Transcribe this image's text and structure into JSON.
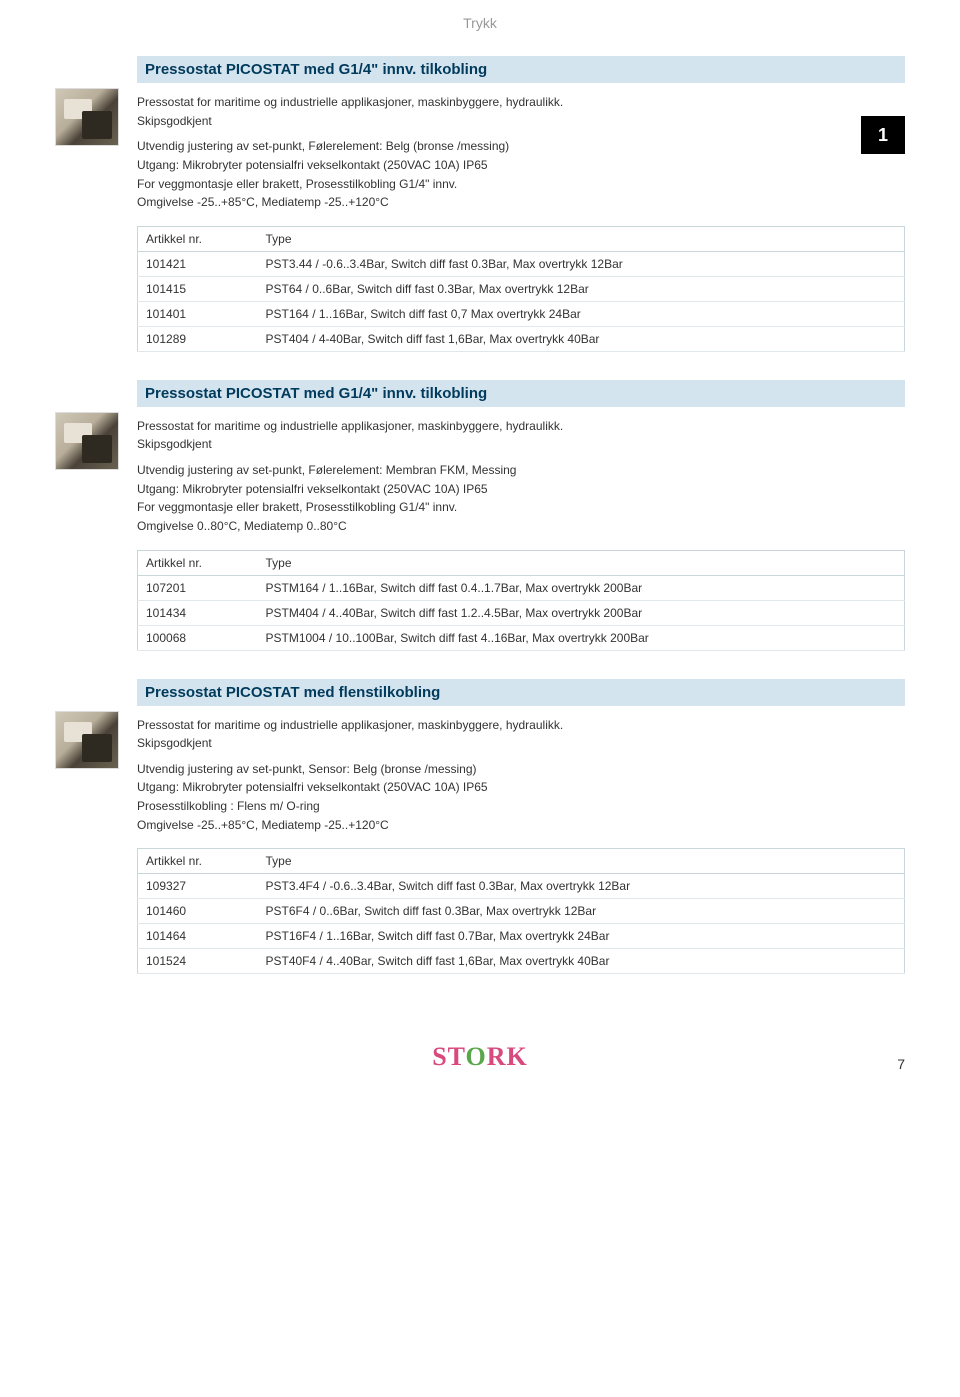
{
  "header_text": "Trykk",
  "tab_number": "1",
  "page_number": "7",
  "logo_text": "STORK",
  "table_headers": {
    "artnr": "Artikkel nr.",
    "type": "Type"
  },
  "sections": [
    {
      "title": "Pressostat PICOSTAT med G1/4\" innv. tilkobling",
      "desc": [
        "Pressostat for maritime og industrielle applikasjoner, maskinbyggere, hydraulikk.",
        "Skipsgodkjent",
        "",
        "Utvendig justering av set-punkt, Følerelement: Belg (bronse /messing)",
        "Utgang: Mikrobryter potensialfri vekselkontakt (250VAC 10A) IP65",
        "For veggmontasje eller brakett, Prosesstilkobling G1/4\" innv.",
        "Omgivelse -25..+85°C, Mediatemp -25..+120°C"
      ],
      "rows": [
        {
          "artnr": "101421",
          "type": "PST3.44 / -0.6..3.4Bar, Switch diff fast 0.3Bar, Max overtrykk 12Bar"
        },
        {
          "artnr": "101415",
          "type": "PST64 / 0..6Bar, Switch diff fast 0.3Bar, Max overtrykk 12Bar"
        },
        {
          "artnr": "101401",
          "type": "PST164 / 1..16Bar, Switch diff fast 0,7 Max overtrykk 24Bar"
        },
        {
          "artnr": "101289",
          "type": "PST404 / 4-40Bar, Switch diff fast 1,6Bar, Max overtrykk 40Bar"
        }
      ]
    },
    {
      "title": "Pressostat PICOSTAT med G1/4\" innv. tilkobling",
      "desc": [
        "Pressostat for maritime og industrielle applikasjoner, maskinbyggere, hydraulikk.",
        "Skipsgodkjent",
        "",
        "Utvendig justering av set-punkt, Følerelement: Membran FKM, Messing",
        "Utgang: Mikrobryter potensialfri vekselkontakt (250VAC 10A) IP65",
        "For veggmontasje eller brakett, Prosesstilkobling G1/4\" innv.",
        "Omgivelse 0..80°C, Mediatemp 0..80°C"
      ],
      "rows": [
        {
          "artnr": "107201",
          "type": "PSTM164 / 1..16Bar, Switch diff fast 0.4..1.7Bar, Max overtrykk 200Bar"
        },
        {
          "artnr": "101434",
          "type": "PSTM404 / 4..40Bar, Switch diff fast 1.2..4.5Bar, Max overtrykk 200Bar"
        },
        {
          "artnr": "100068",
          "type": "PSTM1004 / 10..100Bar, Switch diff fast 4..16Bar, Max overtrykk 200Bar"
        }
      ]
    },
    {
      "title": "Pressostat PICOSTAT med flenstilkobling",
      "desc": [
        "Pressostat for maritime og industrielle applikasjoner, maskinbyggere, hydraulikk.",
        "Skipsgodkjent",
        "",
        "Utvendig justering av set-punkt, Sensor: Belg (bronse /messing)",
        "Utgang: Mikrobryter potensialfri vekselkontakt (250VAC 10A) IP65",
        "Prosesstilkobling : Flens m/ O-ring",
        "Omgivelse -25..+85°C, Mediatemp -25..+120°C"
      ],
      "rows": [
        {
          "artnr": "109327",
          "type": "PST3.4F4 / -0.6..3.4Bar, Switch diff fast 0.3Bar, Max overtrykk 12Bar"
        },
        {
          "artnr": "101460",
          "type": "PST6F4 / 0..6Bar, Switch diff fast 0.3Bar, Max overtrykk 12Bar"
        },
        {
          "artnr": "101464",
          "type": "PST16F4 / 1..16Bar, Switch diff fast 0.7Bar, Max overtrykk 24Bar"
        },
        {
          "artnr": "101524",
          "type": "PST40F4 / 4..40Bar, Switch diff fast 1,6Bar, Max overtrykk 40Bar"
        }
      ]
    }
  ],
  "colors": {
    "title_bg": "#d4e4ee",
    "title_fg": "#003a5c",
    "header_fg": "#999999",
    "border": "#c9d6dc",
    "row_border": "#e0e8ec",
    "tab_bg": "#000000",
    "tab_fg": "#ffffff",
    "logo_pink": "#d84a7d",
    "logo_green": "#5aa64a"
  }
}
